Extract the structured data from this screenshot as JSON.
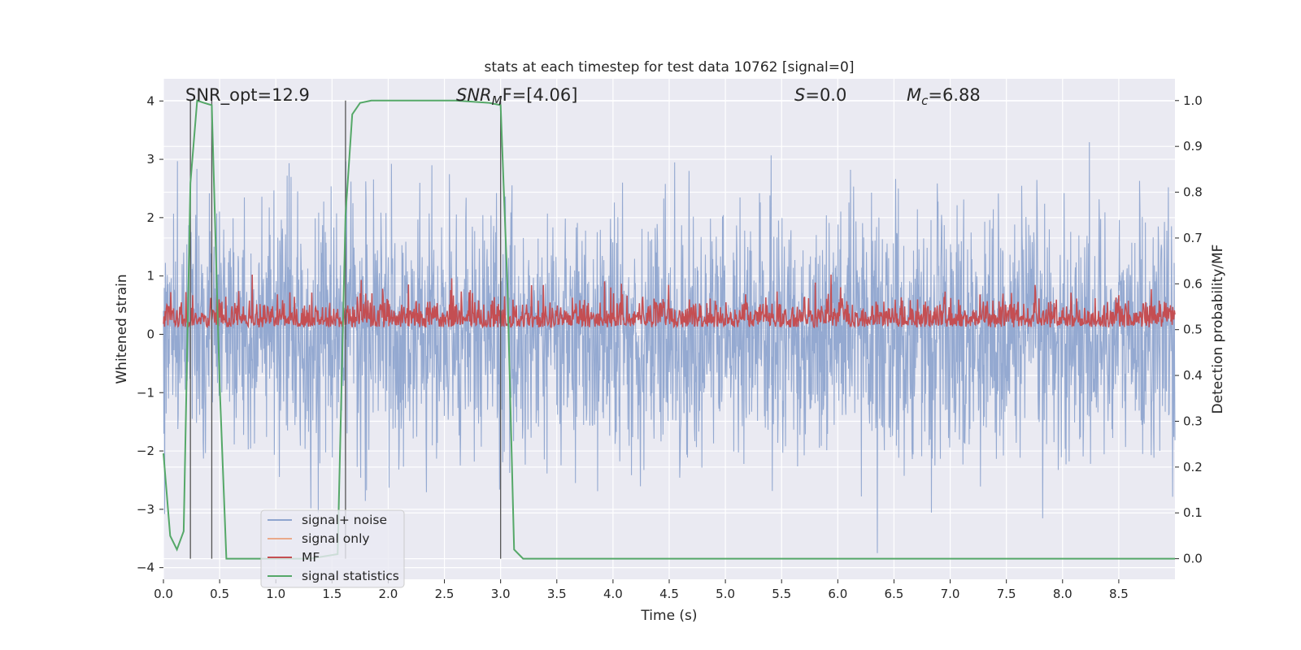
{
  "chart_data": {
    "type": "line",
    "title": "stats at each timestep for test data 10762 [signal=0]",
    "xlabel": "Time (s)",
    "ylabel_left": "Whitened strain",
    "ylabel_right": "Detection probability/MF",
    "xlim": [
      0.0,
      9.0
    ],
    "ylim_left": [
      -4.2,
      4.38
    ],
    "ylim_right": [
      -0.045,
      1.0475
    ],
    "x_ticks": [
      "0.0",
      "0.5",
      "1.0",
      "1.5",
      "2.0",
      "2.5",
      "3.0",
      "3.5",
      "4.0",
      "4.5",
      "5.0",
      "5.5",
      "6.0",
      "6.5",
      "7.0",
      "7.5",
      "8.0",
      "8.5"
    ],
    "y_ticks_left": [
      "4",
      "3",
      "2",
      "1",
      "0",
      "−1",
      "−2",
      "−3",
      "−4"
    ],
    "y_ticks_right": [
      "1.0",
      "0.9",
      "0.8",
      "0.7",
      "0.6",
      "0.5",
      "0.4",
      "0.3",
      "0.2",
      "0.1",
      "0.0"
    ],
    "grid": true,
    "legend_location": "lower-left",
    "annotations": {
      "snr_opt": "SNR_opt=12.9",
      "snr_mf_sym": "SNR",
      "snr_mf_sub": "M",
      "snr_mf_rest": "F=[4.06]",
      "s_sym": "S",
      "s_rest": "=0.0",
      "mc_sym": "M",
      "mc_sub": "c",
      "mc_rest": "=6.88"
    },
    "vertical_markers": [
      0.24,
      0.43,
      1.62,
      3.0
    ],
    "series": [
      {
        "name": "signal+ noise",
        "color": "#8fa5cf",
        "style": "noise",
        "axis": "left",
        "amplitude_sd": 1.05,
        "peak_max": 3.55,
        "peak_min": -3.75
      },
      {
        "name": "signal only",
        "color": "#eaa98a",
        "axis": "left",
        "values_note_constant": 0
      },
      {
        "name": "MF",
        "color": "#c44e52",
        "style": "noise",
        "axis": "right",
        "baseline": 0.505,
        "range": [
          0.495,
          0.62
        ]
      },
      {
        "name": "signal statistics",
        "color": "#55a868",
        "axis": "right",
        "x": [
          0.0,
          0.06,
          0.12,
          0.18,
          0.24,
          0.3,
          0.36,
          0.43,
          0.5,
          0.56,
          0.75,
          1.0,
          1.3,
          1.55,
          1.62,
          1.68,
          1.75,
          1.85,
          2.2,
          2.6,
          2.9,
          3.0,
          3.06,
          3.12,
          3.2,
          3.5,
          4.0,
          5.0,
          6.0,
          7.0,
          8.0,
          9.0
        ],
        "y": [
          0.23,
          0.05,
          0.02,
          0.06,
          0.82,
          1.0,
          0.995,
          0.99,
          0.38,
          0.0,
          0.0,
          0.0,
          0.0,
          0.01,
          0.75,
          0.97,
          0.995,
          1.0,
          1.0,
          1.0,
          0.995,
          0.99,
          0.6,
          0.02,
          0.0,
          0.0,
          0.0,
          0.0,
          0.0,
          0.0,
          0.0,
          0.0
        ]
      }
    ]
  }
}
